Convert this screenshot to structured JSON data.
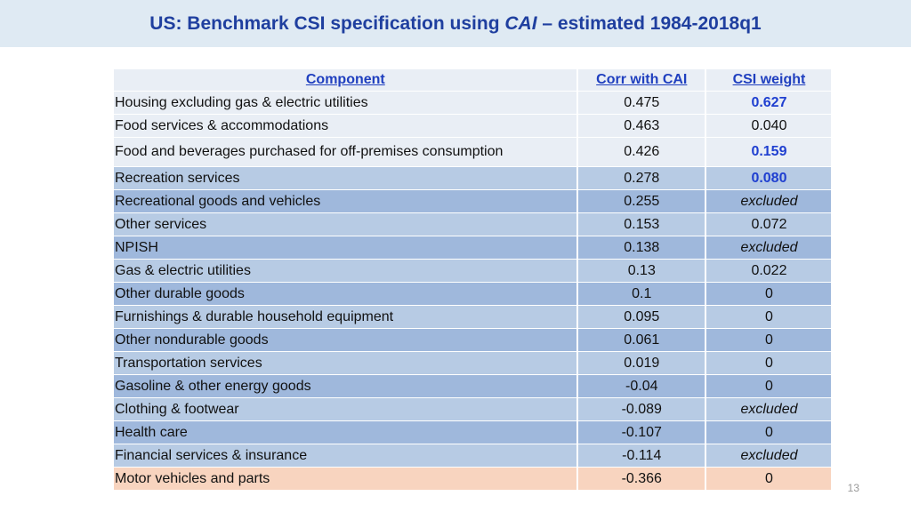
{
  "title": {
    "part1": "US: Benchmark CSI specification using ",
    "part2": "CAI",
    "part3": " – estimated 1984-2018q1"
  },
  "table": {
    "headers": [
      "Component",
      "Corr with CAI",
      "CSI weight"
    ],
    "rows": [
      {
        "component": "Housing excluding gas & electric utilities",
        "corr": "0.475",
        "weight": "0.627",
        "style": "bold"
      },
      {
        "component": "Food services & accommodations",
        "corr": "0.463",
        "weight": "0.040",
        "style": "normal"
      },
      {
        "component": "Food and beverages purchased for off-premises consumption",
        "corr": "0.426",
        "weight": "0.159",
        "style": "bold"
      },
      {
        "component": "Recreation services",
        "corr": "0.278",
        "weight": "0.080",
        "style": "bold"
      },
      {
        "component": "Recreational goods and vehicles",
        "corr": "0.255",
        "weight": "excluded",
        "style": "italic"
      },
      {
        "component": "Other services",
        "corr": "0.153",
        "weight": "0.072",
        "style": "normal"
      },
      {
        "component": "NPISH",
        "corr": "0.138",
        "weight": "excluded",
        "style": "italic"
      },
      {
        "component": "Gas & electric utilities",
        "corr": "0.13",
        "weight": "0.022",
        "style": "normal"
      },
      {
        "component": "Other durable goods",
        "corr": "0.1",
        "weight": "0",
        "style": "normal"
      },
      {
        "component": "Furnishings & durable household equipment",
        "corr": "0.095",
        "weight": "0",
        "style": "normal"
      },
      {
        "component": "Other nondurable goods",
        "corr": "0.061",
        "weight": "0",
        "style": "normal"
      },
      {
        "component": "Transportation services",
        "corr": "0.019",
        "weight": "0",
        "style": "normal"
      },
      {
        "component": "Gasoline & other energy goods",
        "corr": "-0.04",
        "weight": "0",
        "style": "normal"
      },
      {
        "component": "Clothing & footwear",
        "corr": "-0.089",
        "weight": "excluded",
        "style": "italic"
      },
      {
        "component": "Health care",
        "corr": "-0.107",
        "weight": "0",
        "style": "normal"
      },
      {
        "component": "Financial services & insurance",
        "corr": "-0.114",
        "weight": "excluded",
        "style": "italic"
      },
      {
        "component": "Motor vehicles and parts",
        "corr": "-0.366",
        "weight": "0",
        "style": "normal"
      }
    ]
  },
  "page_number": "13",
  "colors": {
    "title_bar": "#dfeaf3",
    "title_text": "#1f3f9f",
    "header_text": "#1f3fbf",
    "light_row": "#e9eef5",
    "blue_row_1": "#b7cbe4",
    "blue_row_2": "#9fb8dc",
    "orange_row": "#f8d4bf"
  }
}
